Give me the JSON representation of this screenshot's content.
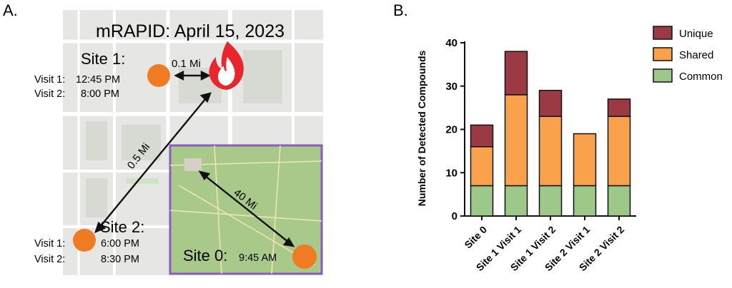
{
  "panel_a": {
    "letter": "A.",
    "title": "mRAPID: April 15, 2023",
    "site1": {
      "label": "Site 1:",
      "visit1_label": "Visit 1:",
      "visit1_time": "12:45 PM",
      "visit2_label": "Visit 2:",
      "visit2_time": "8:00 PM"
    },
    "site2": {
      "label": "Site 2:",
      "visit1_label": "Visit 1:",
      "visit1_time": "6:00 PM",
      "visit2_label": "Visit 2:",
      "visit2_time": "8:30 PM"
    },
    "site0": {
      "label": "Site 0:",
      "time": "9:45 AM"
    },
    "distances": {
      "site1_to_fire": "0.1 Mi",
      "site1_to_site2": "0.5 Mi",
      "inset_to_site0": "40 Mi"
    },
    "colors": {
      "marker": "#ef7b22",
      "fire_outer": "#e8262c",
      "inset_border": "#8a5cc0",
      "inset_fill": "#a9c98a",
      "street_map": "#e6e6e4"
    }
  },
  "panel_b": {
    "letter": "B."
  },
  "chart_data": {
    "type": "bar",
    "stacked": true,
    "categories": [
      "Site 0",
      "Site 1 Visit 1",
      "Site 1 Visit 2",
      "Site 2 Visit 1",
      "Site 2 Visit 2"
    ],
    "series": [
      {
        "name": "Common",
        "values": [
          7,
          7,
          7,
          7,
          7
        ],
        "color": "#9dc88a"
      },
      {
        "name": "Shared",
        "values": [
          9,
          21,
          16,
          12,
          16
        ],
        "color": "#f9a24b"
      },
      {
        "name": "Unique",
        "values": [
          5,
          10,
          6,
          0,
          4
        ],
        "color": "#9c3a43"
      }
    ],
    "legend_order": [
      "Unique",
      "Shared",
      "Common"
    ],
    "legend_position": "right",
    "ylabel": "Number of Detected Compounds",
    "xlabel": "",
    "ylim": [
      0,
      40
    ],
    "yticks": [
      0,
      10,
      20,
      30,
      40
    ],
    "grid": false
  }
}
